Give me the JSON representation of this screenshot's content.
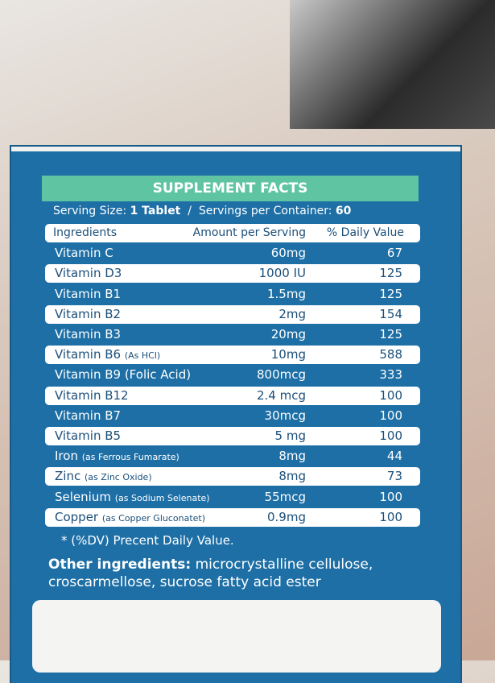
{
  "header": {
    "title": "SUPPLEMENT FACTS"
  },
  "serving": {
    "size_label": "Serving Size:",
    "size": "1 Tablet",
    "separator": "/",
    "container_label": "Servings per Container:",
    "container": 60
  },
  "table": {
    "columns": [
      "Ingredients",
      "Amount per Serving",
      "% Daily Value"
    ],
    "rows": [
      {
        "name": "Vitamin C",
        "amount": "60mg",
        "dv": 67
      },
      {
        "name": "Vitamin D3",
        "amount": "1000 IU",
        "dv": 125
      },
      {
        "name": "Vitamin B1",
        "amount": "1.5mg",
        "dv": 125
      },
      {
        "name": "Vitamin B2",
        "amount": "2mg",
        "dv": 154
      },
      {
        "name": "Vitamin B3",
        "amount": "20mg",
        "dv": 125
      },
      {
        "name": "Vitamin B6",
        "note": "(As HCl)",
        "amount": "10mg",
        "dv": 588
      },
      {
        "name": "Vitamin B9 (Folic Acid)",
        "amount": "800mcg",
        "dv": 333
      },
      {
        "name": "Vitamin B12",
        "amount": "2.4 mcg",
        "dv": 100
      },
      {
        "name": "Vitamin B7",
        "amount": "30mcg",
        "dv": 100
      },
      {
        "name": "Vitamin B5",
        "amount": "5 mg",
        "dv": 100
      },
      {
        "name": "Iron",
        "note": "(as Ferrous Fumarate)",
        "amount": "8mg",
        "dv": 44
      },
      {
        "name": "Zinc",
        "note": "(as Zinc Oxide)",
        "amount": "8mg",
        "dv": 73
      },
      {
        "name": "Selenium",
        "note": "(as Sodium Selenate)",
        "amount": "55mcg",
        "dv": 100
      },
      {
        "name": "Copper",
        "note": "(as Copper Gluconatet)",
        "amount": "0.9mg",
        "dv": 100
      }
    ]
  },
  "footnote": "* (%DV) Precent Daily Value.",
  "other": {
    "label": "Other ingredients:",
    "text": "microcrystalline cellulose, croscarmellose, sucrose fatty acid ester"
  }
}
